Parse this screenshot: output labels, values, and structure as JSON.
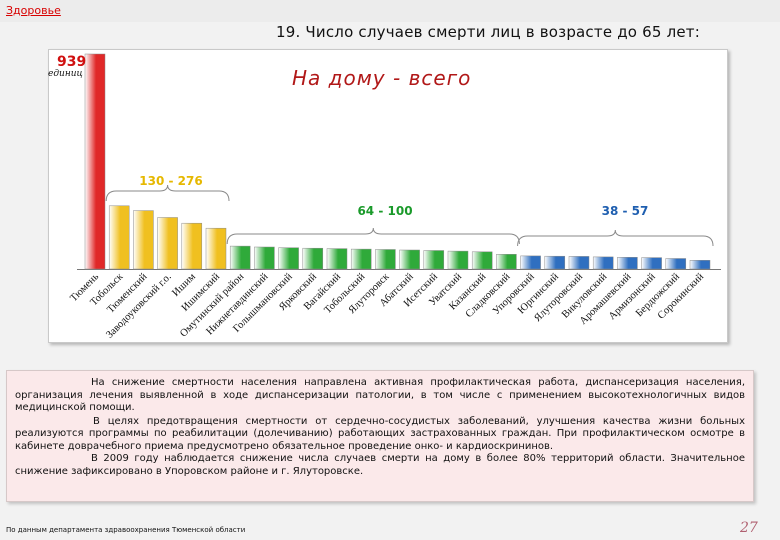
{
  "header": {
    "link": "Здоровье",
    "title": "19. Число случаев смерти лиц в возрасте до 65 лет:"
  },
  "chart_data": {
    "type": "bar",
    "title": "На дому - всего",
    "unit_label": "единиц",
    "max_label": "939",
    "categories": [
      "Тюмень",
      "Тобольск",
      "Тюменский",
      "Заводоуковский г.о.",
      "Ишим",
      "Ишимский",
      "Омутинский район",
      "Нижнетавдинский",
      "Голышмановский",
      "Ярковский",
      "Вагайский",
      "Тобольский",
      "Ялуторовск",
      "Абатский",
      "Исетский",
      "Уватский",
      "Казанский",
      "Сладковский",
      "Упоровский",
      "Юргинский",
      "Ялуторовский",
      "Викуловский",
      "Аромашевский",
      "Армизонский",
      "Бердюжский",
      "Сорокинский"
    ],
    "values": [
      939,
      276,
      255,
      225,
      200,
      178,
      100,
      96,
      93,
      91,
      89,
      87,
      85,
      83,
      81,
      78,
      75,
      64,
      57,
      56,
      55,
      53,
      51,
      50,
      46,
      38
    ],
    "group_colors": [
      "#e02828",
      "#f0c020",
      "#2faa3a",
      "#2f6fc0"
    ],
    "groups": [
      {
        "label": "130 - 276",
        "color": "#e6b800"
      },
      {
        "label": "64 - 100",
        "color": "#1a9a2a"
      },
      {
        "label": "38 - 57",
        "color": "#1f5fb0"
      }
    ]
  },
  "body_text": [
    "На снижение смертности населения направлена активная профилактическая работа, диспансеризация населения, организация лечения выявленной в ходе диспансеризации патологии, в том числе с применением  высокотехнологичных видов медицинской помощи.",
    "В целях предотвращения смертности от сердечно-сосудистых заболеваний, улучшения качества жизни больных реализуются программы по реабилитации (долечиванию) работающих застрахованных граждан. При профилактическом осмотре в кабинете доврачебного приема предусмотрено обязательное проведение онко- и кардиоскрининов.",
    "В 2009 году наблюдается снижение числа случаев смерти на дому в более 80% территорий области. Значительное снижение зафиксировано в Упоровском районе и г. Ялуторовске."
  ],
  "footer": {
    "source": "По данным департамента здравоохранения Тюменской области",
    "page": "27"
  }
}
